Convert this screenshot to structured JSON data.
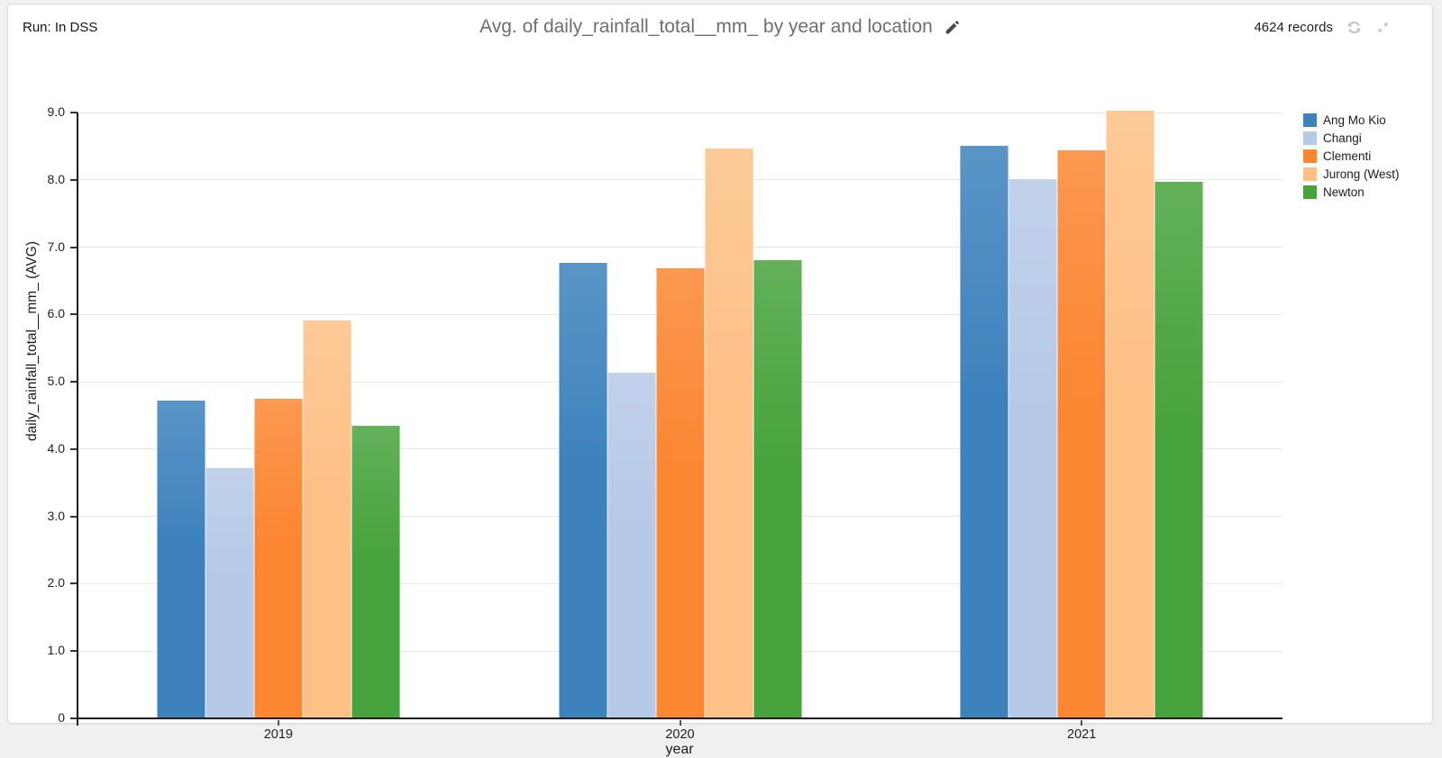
{
  "header": {
    "run_label": "Run: In DSS",
    "title": "Avg. of daily_rainfall_total__mm_ by year and location",
    "records": "4624 records"
  },
  "icons": {
    "edit": "pencil-icon",
    "refresh": "refresh-icon",
    "resize": "compress-arrows-icon"
  },
  "chart_data": {
    "type": "bar",
    "title": "Avg. of daily_rainfall_total__mm_ by year and location",
    "xlabel": "year",
    "ylabel": "daily_rainfall_total__mm_ (AVG)",
    "categories": [
      "2019",
      "2020",
      "2021"
    ],
    "series": [
      {
        "name": "Ang Mo Kio",
        "color": "#3d82bd",
        "values": [
          4.72,
          6.77,
          8.51
        ]
      },
      {
        "name": "Changi",
        "color": "#b6c9e7",
        "values": [
          3.72,
          5.13,
          8.01
        ]
      },
      {
        "name": "Clementi",
        "color": "#fc8632",
        "values": [
          4.75,
          6.68,
          8.44
        ]
      },
      {
        "name": "Jurong (West)",
        "color": "#fdc085",
        "values": [
          5.91,
          8.47,
          9.03
        ]
      },
      {
        "name": "Newton",
        "color": "#47a33c",
        "values": [
          4.34,
          6.81,
          7.97
        ]
      }
    ],
    "ylim": [
      0,
      9.0
    ],
    "yticks": [
      {
        "v": 9,
        "label": "9.0"
      },
      {
        "v": 8,
        "label": "8.0"
      },
      {
        "v": 7,
        "label": "7.0"
      },
      {
        "v": 6,
        "label": "6.0"
      },
      {
        "v": 5,
        "label": "5.0"
      },
      {
        "v": 4,
        "label": "4.0"
      },
      {
        "v": 3,
        "label": "3.0"
      },
      {
        "v": 2,
        "label": "2.0"
      },
      {
        "v": 1,
        "label": "1.0"
      },
      {
        "v": 0,
        "label": "0"
      }
    ],
    "grid": true,
    "legend_position": "right"
  }
}
